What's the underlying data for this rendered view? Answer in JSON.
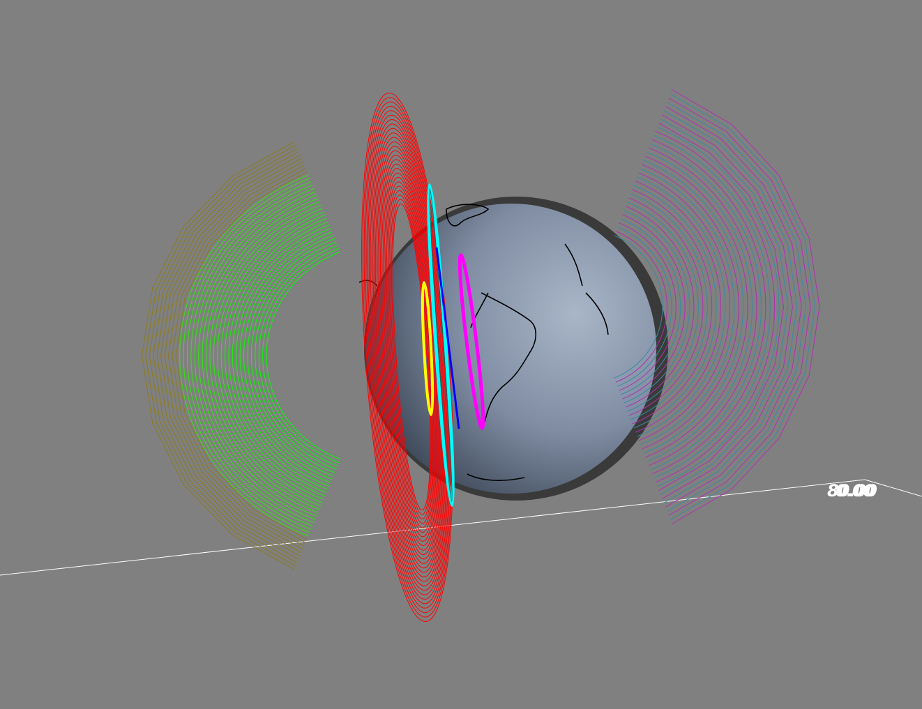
{
  "scene": {
    "background_color": "#808080",
    "globe": {
      "fill_dark": "#4a5566",
      "fill_light": "#9eabbf",
      "shadow": "#3e3e3e",
      "coastline_color": "#000000"
    },
    "shells": [
      {
        "name": "green-left-shell",
        "inner_color": "#00ff00",
        "outer_color": "#8a7a20"
      },
      {
        "name": "purple-right-shell",
        "inner_color": "#3a8aa0",
        "outer_color": "#b030b0"
      },
      {
        "name": "red-plane-shell",
        "color": "#ff0000"
      },
      {
        "name": "cyan-ring",
        "color": "#00ffff"
      },
      {
        "name": "blue-ring",
        "color": "#0000ff"
      },
      {
        "name": "magenta-ring",
        "color": "#ff00ff"
      },
      {
        "name": "yellow-ring",
        "color": "#ffff00"
      }
    ],
    "axis": {
      "color": "#ffffff",
      "label_overlap_a": "80.00",
      "label_overlap_b": "0.00"
    }
  }
}
